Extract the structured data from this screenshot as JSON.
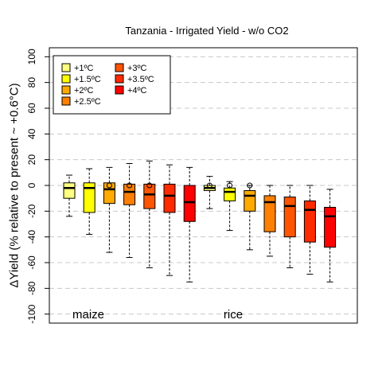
{
  "chart_data": {
    "type": "boxplot",
    "title": "Tanzania - Irrigated Yield - w/o CO2",
    "ylabel": "ΔYield (% relative to present ~ +0.6°C)",
    "xlabel": "",
    "ylim": [
      -107,
      107
    ],
    "yticks": [
      -100,
      -80,
      -60,
      -40,
      -20,
      0,
      20,
      40,
      60,
      80,
      100
    ],
    "grid": "horizontal dashed",
    "legend_position": "top-left",
    "groups": [
      "maize",
      "rice"
    ],
    "series": [
      {
        "name": "+1ºC",
        "color": "#ffff80"
      },
      {
        "name": "+1.5ºC",
        "color": "#ffff00"
      },
      {
        "name": "+2ºC",
        "color": "#ffaa00"
      },
      {
        "name": "+2.5ºC",
        "color": "#ff8000"
      },
      {
        "name": "+3ºC",
        "color": "#ff5500"
      },
      {
        "name": "+3.5ºC",
        "color": "#ff2a00"
      },
      {
        "name": "+4ºC",
        "color": "#ff0000"
      }
    ],
    "boxes": [
      {
        "group": "maize",
        "series": 0,
        "whisker_low": -24,
        "q1": -10,
        "median": -2,
        "q3": 2,
        "whisker_high": 8,
        "outliers": []
      },
      {
        "group": "maize",
        "series": 1,
        "whisker_low": -38,
        "q1": -21,
        "median": -2,
        "q3": 2,
        "whisker_high": 13,
        "outliers": []
      },
      {
        "group": "maize",
        "series": 2,
        "whisker_low": -52,
        "q1": -14,
        "median": -3,
        "q3": 2,
        "whisker_high": 14,
        "outliers": [
          0
        ]
      },
      {
        "group": "maize",
        "series": 3,
        "whisker_low": -56,
        "q1": -15,
        "median": -5,
        "q3": 1,
        "whisker_high": 17,
        "outliers": [
          0
        ]
      },
      {
        "group": "maize",
        "series": 4,
        "whisker_low": -64,
        "q1": -18,
        "median": -7,
        "q3": 1,
        "whisker_high": 19,
        "outliers": [
          0
        ]
      },
      {
        "group": "maize",
        "series": 5,
        "whisker_low": -70,
        "q1": -21,
        "median": -8,
        "q3": 1,
        "whisker_high": 16,
        "outliers": []
      },
      {
        "group": "maize",
        "series": 6,
        "whisker_low": -75,
        "q1": -28,
        "median": -13,
        "q3": 0,
        "whisker_high": 14,
        "outliers": []
      },
      {
        "group": "rice",
        "series": 0,
        "whisker_low": -18,
        "q1": -4,
        "median": -2,
        "q3": 0,
        "whisker_high": 7,
        "outliers": [
          0
        ]
      },
      {
        "group": "rice",
        "series": 1,
        "whisker_low": -35,
        "q1": -12,
        "median": -5,
        "q3": -2,
        "whisker_high": 3,
        "outliers": [
          0
        ]
      },
      {
        "group": "rice",
        "series": 2,
        "whisker_low": -50,
        "q1": -20,
        "median": -8,
        "q3": -4,
        "whisker_high": 0,
        "outliers": [
          0
        ]
      },
      {
        "group": "rice",
        "series": 3,
        "whisker_low": -55,
        "q1": -36,
        "median": -13,
        "q3": -8,
        "whisker_high": 0,
        "outliers": []
      },
      {
        "group": "rice",
        "series": 4,
        "whisker_low": -64,
        "q1": -40,
        "median": -16,
        "q3": -9,
        "whisker_high": 0,
        "outliers": []
      },
      {
        "group": "rice",
        "series": 5,
        "whisker_low": -69,
        "q1": -44,
        "median": -19,
        "q3": -12,
        "whisker_high": 0,
        "outliers": []
      },
      {
        "group": "rice",
        "series": 6,
        "whisker_low": -75,
        "q1": -48,
        "median": -24,
        "q3": -17,
        "whisker_high": -3,
        "outliers": []
      }
    ]
  }
}
